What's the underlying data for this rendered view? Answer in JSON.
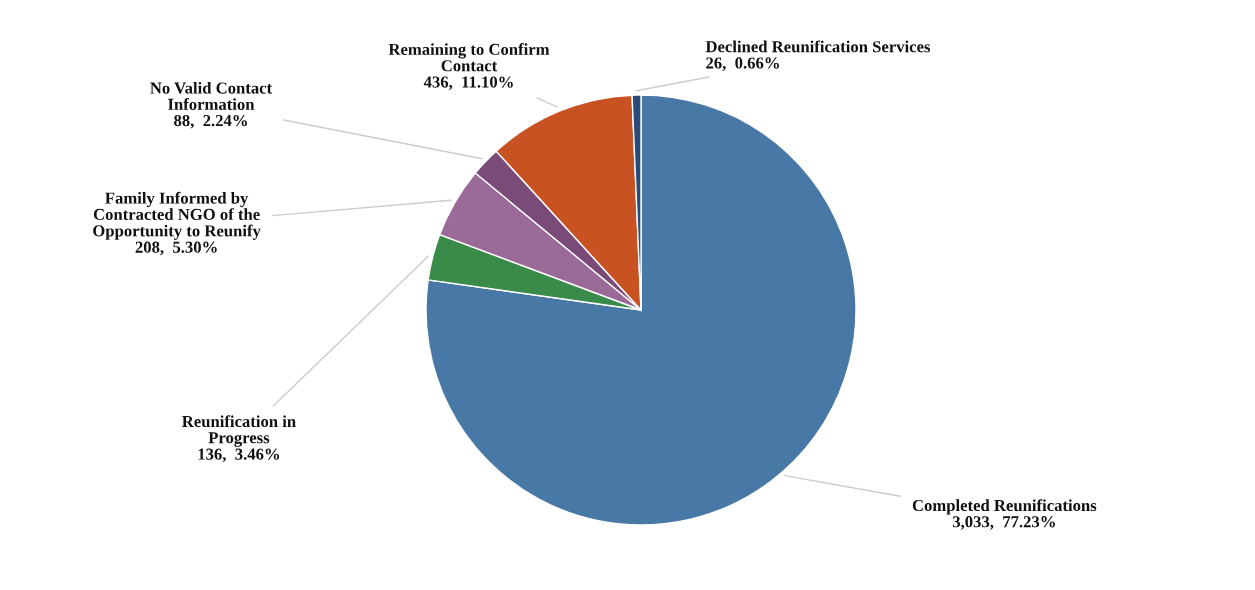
{
  "chart_data": {
    "type": "pie",
    "categories": [
      "Completed Reunifications",
      "Reunification in\nProgress",
      "Family Informed by\nContracted NGO of the\nOpportunity to Reunify",
      "No Valid Contact\nInformation",
      "Remaining to Confirm\nContact",
      "Declined Reunification Services"
    ],
    "values": [
      3033,
      136,
      208,
      88,
      436,
      26
    ],
    "value_labels": [
      "3,033,  77.23%",
      "136,  3.46%",
      "208,  5.30%",
      "88,  2.24%",
      "436,  11.10%",
      "26,  0.66%"
    ],
    "colors": [
      "#4878a6",
      "#3a8a4a",
      "#9a6a98",
      "#7a4a78",
      "#c85222",
      "#2a4a78"
    ]
  }
}
